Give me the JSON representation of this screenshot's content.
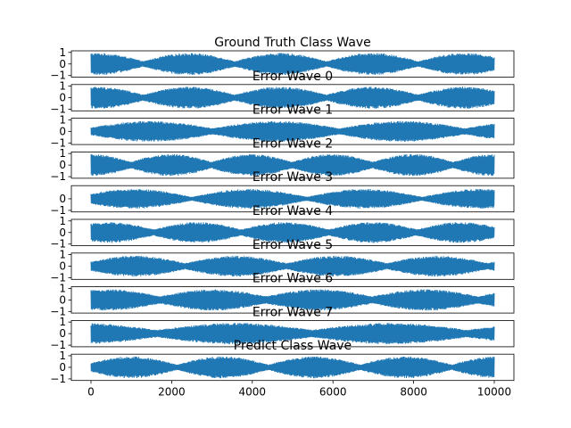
{
  "chart_data": {
    "type": "line",
    "layout": "stacked-subplots",
    "shared_x": true,
    "x_range": [
      0,
      10000
    ],
    "x_ticks": [
      0,
      2000,
      4000,
      6000,
      8000,
      10000
    ],
    "line_color": "#1f77b4",
    "grid": false,
    "panels": [
      {
        "title": "Ground Truth Class Wave",
        "ylim": [
          -1,
          1
        ],
        "yticks": [
          1,
          0,
          -1
        ],
        "cycles": 4.4,
        "phase": 1.35,
        "floor": 0.25,
        "amp_scale": 0.95
      },
      {
        "title": "Error Wave 0",
        "ylim": [
          -1,
          1
        ],
        "yticks": [
          1,
          0,
          -1
        ],
        "cycles": 4.4,
        "phase": 1.35,
        "floor": 0.28,
        "amp_scale": 0.95
      },
      {
        "title": "Error Wave 1",
        "ylim": [
          -1,
          1
        ],
        "yticks": [
          1,
          0,
          -1
        ],
        "cycles": 3.2,
        "phase": 0.1,
        "floor": 0.3,
        "amp_scale": 0.9
      },
      {
        "title": "Error Wave 2",
        "ylim": [
          -1,
          1
        ],
        "yticks": [
          1,
          0,
          -1
        ],
        "cycles": 5.0,
        "phase": 1.6,
        "floor": 0.3,
        "amp_scale": 0.95
      },
      {
        "title": "Error Wave 3",
        "ylim": [
          -1,
          1
        ],
        "yticks": [
          0,
          -1
        ],
        "cycles": 3.5,
        "phase": 0.4,
        "floor": 0.2,
        "amp_scale": 0.85
      },
      {
        "title": "Error Wave 4",
        "ylim": [
          -1,
          1
        ],
        "yticks": [
          1,
          0,
          -1
        ],
        "cycles": 4.6,
        "phase": 0.9,
        "floor": 0.3,
        "amp_scale": 0.9
      },
      {
        "title": "Error Wave 5",
        "ylim": [
          -1,
          1
        ],
        "yticks": [
          1,
          0,
          -1
        ],
        "cycles": 4.0,
        "phase": 0.2,
        "floor": 0.3,
        "amp_scale": 0.9
      },
      {
        "title": "Error Wave 6",
        "ylim": [
          -1,
          1
        ],
        "yticks": [
          1,
          0,
          -1
        ],
        "cycles": 3.8,
        "phase": 1.1,
        "floor": 0.35,
        "amp_scale": 0.92
      },
      {
        "title": "Error Wave 7",
        "ylim": [
          -1,
          1
        ],
        "yticks": [
          1,
          0,
          -1
        ],
        "cycles": 2.6,
        "phase": 1.8,
        "floor": 0.35,
        "amp_scale": 0.92
      },
      {
        "title": "Predict Class Wave",
        "ylim": [
          -1,
          1
        ],
        "yticks": [
          1,
          0,
          -1
        ],
        "cycles": 4.4,
        "phase": 0.2,
        "floor": 0.25,
        "amp_scale": 0.95
      }
    ]
  }
}
